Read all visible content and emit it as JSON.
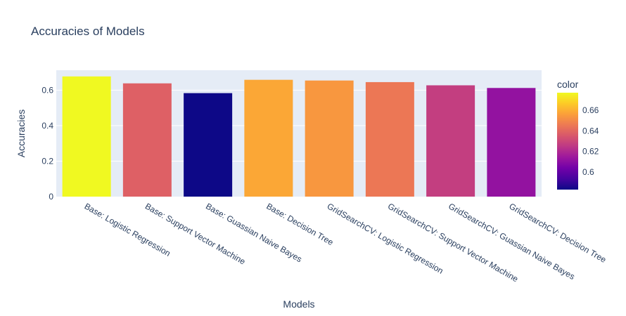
{
  "chart_data": {
    "type": "bar",
    "title": "Accuracies of Models",
    "xlabel": "Models",
    "ylabel": "Accuracies",
    "categories": [
      "Base: Logistic Regression",
      "Base: Support Vector Machine",
      "Base: Guassian Naive Bayes",
      "Base: Decision Tree",
      "GridSearchCV: Logistic Regression",
      "GridSearchCV: Support Vector Machine",
      "GridSearchCV: Guassian Naive Bayes",
      "GridSearchCV: Decision Tree"
    ],
    "values": [
      0.677,
      0.638,
      0.583,
      0.658,
      0.654,
      0.645,
      0.627,
      0.612
    ],
    "ylim": [
      0,
      0.712
    ],
    "yticks": [
      "0",
      "0.2",
      "0.4",
      "0.6"
    ],
    "grid": true,
    "colorbar": {
      "title": "color",
      "range": [
        0.583,
        0.677
      ],
      "ticks": [
        "0.6",
        "0.62",
        "0.64",
        "0.66"
      ],
      "colorscale": "plasma"
    },
    "colors": {
      "plot_bg": "#e5ecf6",
      "grid": "#ffffff",
      "text": "#2a3f5f"
    }
  }
}
